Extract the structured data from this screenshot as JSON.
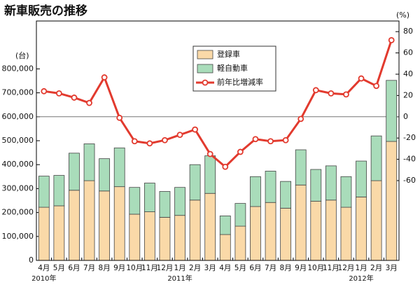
{
  "chart_data": {
    "type": "bar",
    "title": "新車販売の推移",
    "y_label": "(台)",
    "y2_label": "(%)",
    "categories": [
      "4月",
      "5月",
      "6月",
      "7月",
      "8月",
      "9月",
      "10月",
      "11月",
      "12月",
      "1月",
      "2月",
      "3月",
      "4月",
      "5月",
      "6月",
      "7月",
      "8月",
      "9月",
      "10月",
      "11月",
      "12月",
      "1月",
      "2月",
      "3月"
    ],
    "year_labels": [
      "2010年",
      "2011年",
      "2012年"
    ],
    "series": [
      {
        "name": "登録車",
        "color": "#fad9a8",
        "type": "bar",
        "values": [
          222000,
          228000,
          293000,
          333000,
          290000,
          308000,
          193000,
          203000,
          180000,
          188000,
          252000,
          280000,
          108000,
          143000,
          225000,
          242000,
          218000,
          315000,
          247000,
          252000,
          222000,
          265000,
          333000,
          497000
        ]
      },
      {
        "name": "軽自動車",
        "color": "#a9dcba",
        "type": "bar",
        "values": [
          130000,
          127000,
          155000,
          154000,
          135000,
          162000,
          112000,
          120000,
          108000,
          117000,
          148000,
          157000,
          78000,
          95000,
          125000,
          131000,
          112000,
          147000,
          133000,
          143000,
          128000,
          150000,
          187000,
          255000
        ]
      },
      {
        "name": "前年比増減率",
        "color": "#e23a2e",
        "type": "line",
        "axis": "y2",
        "values": [
          24,
          22,
          18,
          13,
          37,
          -1,
          -23,
          -25,
          -22,
          -17,
          -12,
          -35,
          -47,
          -33,
          -21,
          -23,
          -22,
          -2,
          25,
          22,
          21,
          36,
          29,
          72
        ]
      }
    ],
    "ylim": [
      0,
      1000000
    ],
    "yticks": [
      {
        "value": 0,
        "label": "0"
      },
      {
        "value": 100000,
        "label": "100,000"
      },
      {
        "value": 200000,
        "label": "200,000"
      },
      {
        "value": 300000,
        "label": "300,000"
      },
      {
        "value": 400000,
        "label": "400,000"
      },
      {
        "value": 500000,
        "label": "500,000"
      },
      {
        "value": 600000,
        "label": "600,000"
      },
      {
        "value": 700000,
        "label": "700,000"
      },
      {
        "value": 800000,
        "label": "800,000"
      }
    ],
    "y2lim": [
      -135,
      90
    ],
    "y2ticks": [
      -60,
      -40,
      -20,
      0,
      20,
      40,
      60,
      80
    ],
    "y2_zero_line": true,
    "legend": "top-center"
  }
}
